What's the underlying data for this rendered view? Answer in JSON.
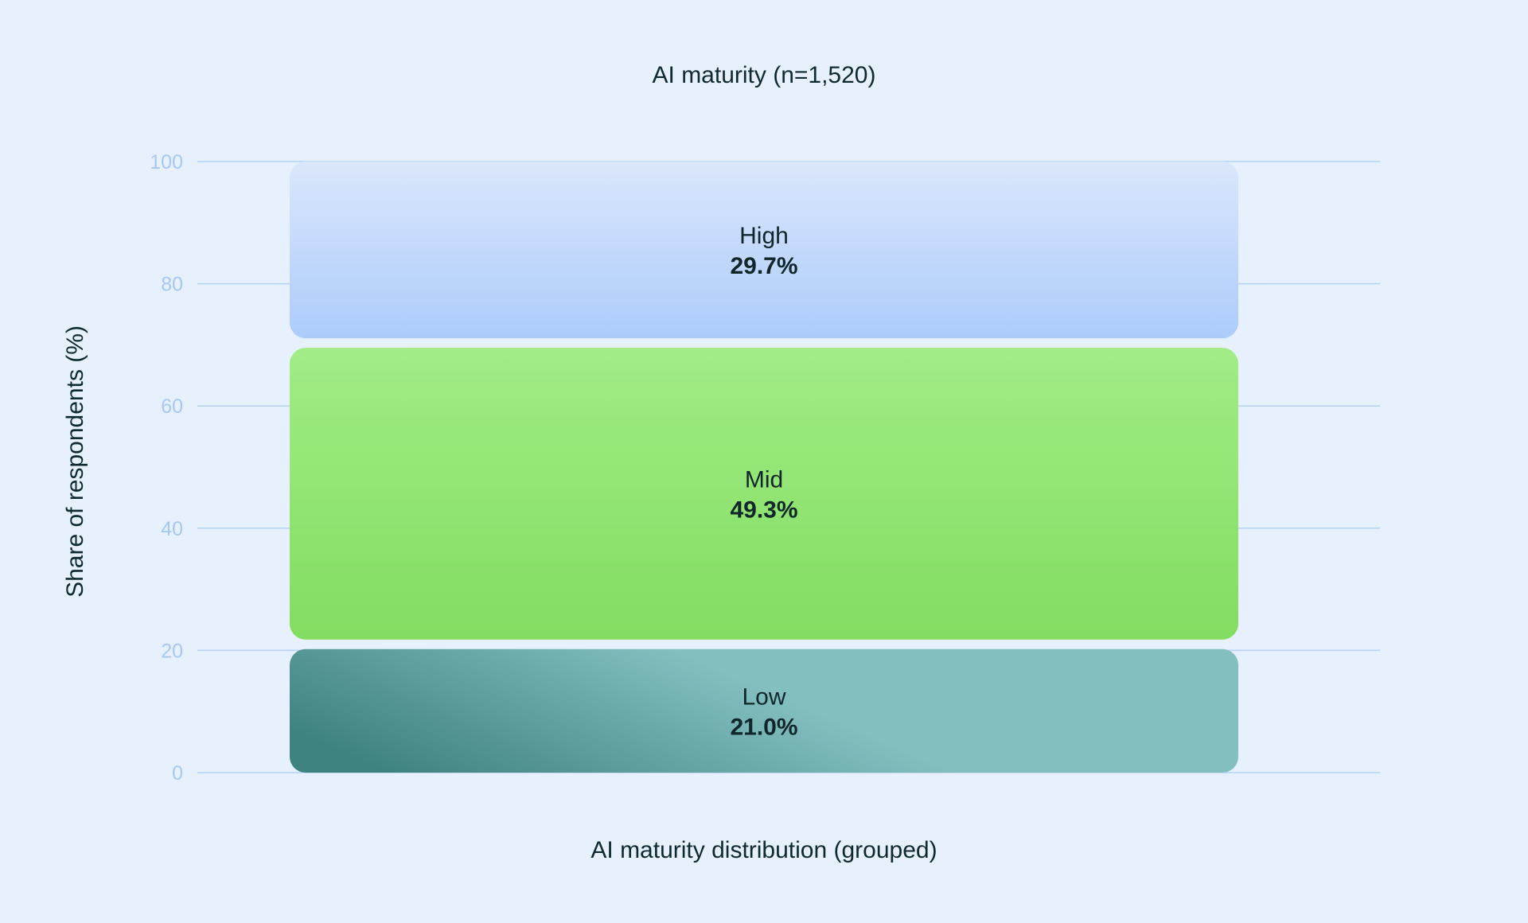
{
  "chart_data": {
    "type": "bar",
    "title": "AI maturity (n=1,520)",
    "xlabel": "AI maturity distribution (grouped)",
    "ylabel": "Share of respondents (%)",
    "ylim": [
      0,
      100
    ],
    "yticks": [
      0,
      20,
      40,
      60,
      80,
      100
    ],
    "grid": true,
    "stacked": true,
    "categories": [
      "AI maturity distribution (grouped)"
    ],
    "series": [
      {
        "name": "Low",
        "values": [
          21.0
        ],
        "label": "21.0%",
        "colors": [
          "#3f8380",
          "#84bfc0"
        ]
      },
      {
        "name": "Mid",
        "values": [
          49.3
        ],
        "label": "49.3%",
        "colors": [
          "#a2ec86",
          "#82dd61"
        ]
      },
      {
        "name": "High",
        "values": [
          29.7
        ],
        "label": "29.7%",
        "colors": [
          "#dbe7fc",
          "#acccfb"
        ]
      }
    ]
  }
}
